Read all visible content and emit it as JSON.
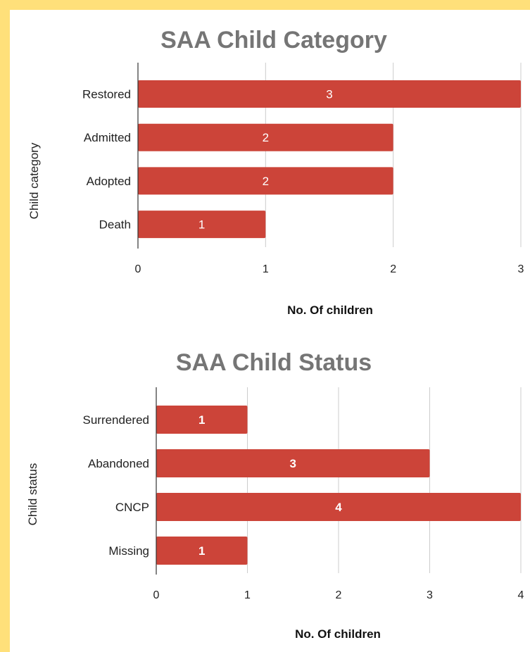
{
  "chart_data": [
    {
      "type": "bar",
      "orientation": "horizontal",
      "title": "SAA Child Category",
      "xlabel": "No. Of children",
      "ylabel": "Child category",
      "categories": [
        "Restored",
        "Admitted",
        "Adopted",
        "Death"
      ],
      "values": [
        3,
        2,
        2,
        1
      ],
      "xlim": [
        0,
        3
      ],
      "xticks": [
        "0",
        "1",
        "2",
        "3"
      ],
      "grid": "vertical",
      "bar_color": "#cc4439",
      "data_labels": [
        "3",
        "2",
        "2",
        "1"
      ]
    },
    {
      "type": "bar",
      "orientation": "horizontal",
      "title": "SAA Child Status",
      "xlabel": "No. Of children",
      "ylabel": "Child status",
      "categories": [
        "Surrendered",
        "Abandoned",
        "CNCP",
        "Missing"
      ],
      "values": [
        1,
        3,
        4,
        1
      ],
      "xlim": [
        0,
        4
      ],
      "xticks": [
        "0",
        "1",
        "2",
        "3",
        "4"
      ],
      "grid": "vertical",
      "bar_color": "#cc4439",
      "data_labels": [
        "1",
        "3",
        "4",
        "1"
      ]
    }
  ]
}
